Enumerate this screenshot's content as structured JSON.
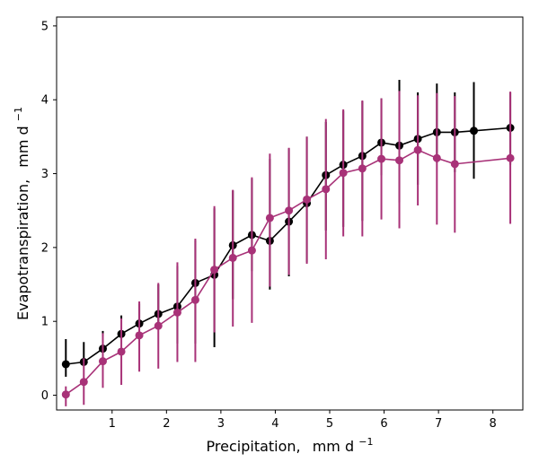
{
  "chart_data": {
    "type": "line",
    "xlabel": "Precipitation,",
    "xlabel_unit": "mm d",
    "xlabel_unit_sup": "−1",
    "ylabel": "Evapotranspiration,",
    "ylabel_unit": "mm d",
    "ylabel_unit_sup": "−1",
    "xlim": [
      -0.02,
      8.55
    ],
    "ylim": [
      -0.2,
      5.12
    ],
    "x_ticks": [
      1,
      2,
      3,
      4,
      5,
      6,
      7,
      8
    ],
    "y_ticks": [
      0,
      1,
      2,
      3,
      4,
      5
    ],
    "grid": false,
    "series": [
      {
        "color": "#000000",
        "x": [
          0.15,
          0.48,
          0.83,
          1.17,
          1.5,
          1.85,
          2.2,
          2.53,
          2.88,
          3.22,
          3.57,
          3.9,
          4.25,
          4.58,
          4.93,
          5.25,
          5.6,
          5.95,
          6.28,
          6.62,
          6.97,
          7.3,
          7.65,
          8.32
        ],
        "y": [
          0.42,
          0.45,
          0.63,
          0.83,
          0.97,
          1.1,
          1.2,
          1.52,
          1.63,
          2.03,
          2.17,
          2.09,
          2.35,
          2.6,
          2.98,
          3.12,
          3.24,
          3.42,
          3.38,
          3.47,
          3.56,
          3.56,
          3.58,
          3.62
        ],
        "err_low": [
          0.25,
          0.45,
          0.8,
          1.03,
          1.0,
          0.97,
          0.7,
          0.7,
          0.65,
          1.3,
          1.68,
          1.43,
          1.61,
          1.8,
          2.23,
          2.28,
          2.36,
          2.98,
          2.61,
          2.85,
          3.15,
          3.02,
          2.93,
          3.12
        ],
        "err_high": [
          0.76,
          0.72,
          0.87,
          1.08,
          1.24,
          1.5,
          1.75,
          2.1,
          2.53,
          2.77,
          2.93,
          3.2,
          3.34,
          3.5,
          3.7,
          3.85,
          3.98,
          4.02,
          4.27,
          4.1,
          4.22,
          4.1,
          4.24,
          4.1
        ]
      },
      {
        "color": "#a83278",
        "x": [
          0.15,
          0.48,
          0.83,
          1.17,
          1.5,
          1.85,
          2.2,
          2.53,
          2.88,
          3.22,
          3.57,
          3.9,
          4.25,
          4.58,
          4.93,
          5.25,
          5.6,
          5.95,
          6.28,
          6.62,
          6.97,
          7.3,
          8.32
        ],
        "y": [
          0.01,
          0.18,
          0.46,
          0.59,
          0.81,
          0.94,
          1.12,
          1.29,
          1.7,
          1.86,
          1.96,
          2.4,
          2.5,
          2.65,
          2.79,
          3.01,
          3.07,
          3.2,
          3.18,
          3.32,
          3.21,
          3.13,
          3.21
        ],
        "err_low": [
          -0.15,
          -0.13,
          0.1,
          0.14,
          0.32,
          0.36,
          0.45,
          0.45,
          0.85,
          0.93,
          0.98,
          1.47,
          1.63,
          1.78,
          1.84,
          2.15,
          2.15,
          2.38,
          2.26,
          2.57,
          2.31,
          2.2,
          2.32
        ],
        "err_high": [
          0.12,
          0.5,
          0.84,
          1.04,
          1.27,
          1.52,
          1.8,
          2.12,
          2.56,
          2.78,
          2.95,
          3.27,
          3.35,
          3.5,
          3.74,
          3.87,
          3.99,
          4.02,
          4.12,
          4.06,
          4.09,
          4.05,
          4.11
        ]
      }
    ]
  }
}
